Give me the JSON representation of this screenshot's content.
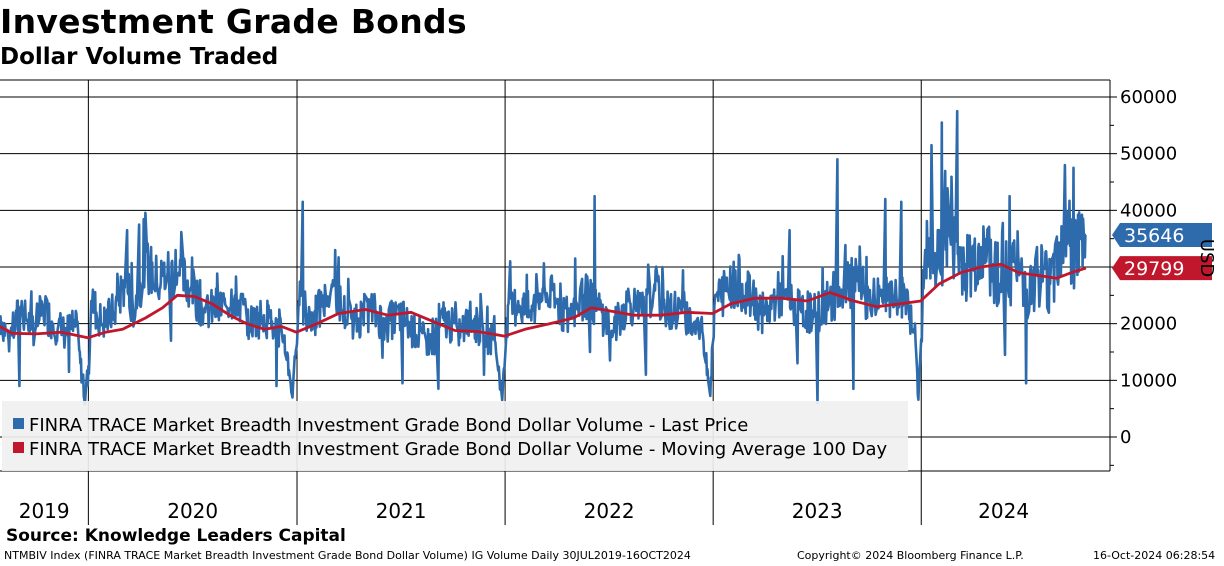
{
  "header": {
    "title": "Investment Grade Bonds",
    "subtitle": "Dollar Volume Traded"
  },
  "source": "Source: Knowledge Leaders Capital",
  "footer": {
    "left": "NTMBIV Index (FINRA TRACE Market Breadth Investment Grade Bond Dollar Volume) IG Volume  Daily 30JUL2019-16OCT2024",
    "middle": "Copyright© 2024 Bloomberg Finance L.P.",
    "right": "16-Oct-2024 06:28:54"
  },
  "colors": {
    "series_last": "#2e6bad",
    "series_ma": "#c0172c",
    "tag_last": "#2e6bad",
    "tag_ma": "#c0172c",
    "legend_bg": "#f0f0f0"
  },
  "chart_data": {
    "type": "line",
    "title": "Investment Grade Bonds",
    "subtitle": "Dollar Volume Traded",
    "ylabel": "USD",
    "ylim": [
      -6000,
      63000
    ],
    "yticks": [
      0,
      10000,
      20000,
      30000,
      40000,
      50000,
      60000
    ],
    "ytick_labels": [
      "0",
      "10000",
      "20000",
      "30000",
      "40000",
      "50000",
      "60000"
    ],
    "x_range": [
      "2019-07-30",
      "2024-10-16"
    ],
    "year_labels": [
      "2019",
      "2020",
      "2021",
      "2022",
      "2023",
      "2024"
    ],
    "year_boundaries": [
      "2020-01-01",
      "2021-01-01",
      "2022-01-01",
      "2023-01-01",
      "2024-01-01"
    ],
    "grid": true,
    "legend_placement": "bottom-left",
    "series": [
      {
        "name": "FINRA TRACE Market Breadth Investment Grade Bond Dollar Volume - Last Price",
        "last_value": 35646,
        "last_label": "35646",
        "points": [
          [
            "2019-07-30",
            21500
          ],
          [
            "2019-08-15",
            17000
          ],
          [
            "2019-09-05",
            23000
          ],
          [
            "2019-09-25",
            19000
          ],
          [
            "2019-10-15",
            22500
          ],
          [
            "2019-11-01",
            20000
          ],
          [
            "2019-11-20",
            18500
          ],
          [
            "2019-12-10",
            19500
          ],
          [
            "2019-12-26",
            6500
          ],
          [
            "2020-01-02",
            12500
          ],
          [
            "2020-01-06",
            24000
          ],
          [
            "2020-01-25",
            20000
          ],
          [
            "2020-02-15",
            22000
          ],
          [
            "2020-03-05",
            27500
          ],
          [
            "2020-03-20",
            23000
          ],
          [
            "2020-04-10",
            30500
          ],
          [
            "2020-05-01",
            27500
          ],
          [
            "2020-05-20",
            29000
          ],
          [
            "2020-06-10",
            28500
          ],
          [
            "2020-07-01",
            26000
          ],
          [
            "2020-07-25",
            22000
          ],
          [
            "2020-08-20",
            23000
          ],
          [
            "2020-09-15",
            25000
          ],
          [
            "2020-10-10",
            20000
          ],
          [
            "2020-11-05",
            21500
          ],
          [
            "2020-11-25",
            19000
          ],
          [
            "2020-12-10",
            17500
          ],
          [
            "2020-12-24",
            7500
          ],
          [
            "2021-01-05",
            24000
          ],
          [
            "2021-01-25",
            20500
          ],
          [
            "2021-02-15",
            23000
          ],
          [
            "2021-03-05",
            26500
          ],
          [
            "2021-03-25",
            22000
          ],
          [
            "2021-04-15",
            20500
          ],
          [
            "2021-05-10",
            22500
          ],
          [
            "2021-06-05",
            20000
          ],
          [
            "2021-07-01",
            21500
          ],
          [
            "2021-07-30",
            18000
          ],
          [
            "2021-08-25",
            16500
          ],
          [
            "2021-09-15",
            21000
          ],
          [
            "2021-10-10",
            18500
          ],
          [
            "2021-11-05",
            20500
          ],
          [
            "2021-11-25",
            18000
          ],
          [
            "2021-12-15",
            17000
          ],
          [
            "2021-12-27",
            6500
          ],
          [
            "2022-01-05",
            21000
          ],
          [
            "2022-01-25",
            24000
          ],
          [
            "2022-02-15",
            21500
          ],
          [
            "2022-03-10",
            26000
          ],
          [
            "2022-04-01",
            23500
          ],
          [
            "2022-04-25",
            21000
          ],
          [
            "2022-05-20",
            25000
          ],
          [
            "2022-06-15",
            22500
          ],
          [
            "2022-07-10",
            19000
          ],
          [
            "2022-08-05",
            24000
          ],
          [
            "2022-09-01",
            22000
          ],
          [
            "2022-09-20",
            26000
          ],
          [
            "2022-10-15",
            22000
          ],
          [
            "2022-11-05",
            23000
          ],
          [
            "2022-11-25",
            20000
          ],
          [
            "2022-12-15",
            18000
          ],
          [
            "2022-12-27",
            8000
          ],
          [
            "2023-01-05",
            24500
          ],
          [
            "2023-01-25",
            26000
          ],
          [
            "2023-02-15",
            27500
          ],
          [
            "2023-03-10",
            24000
          ],
          [
            "2023-04-01",
            21500
          ],
          [
            "2023-04-25",
            25000
          ],
          [
            "2023-05-15",
            23500
          ],
          [
            "2023-06-05",
            22000
          ],
          [
            "2023-07-01",
            22000
          ],
          [
            "2023-07-25",
            24000
          ],
          [
            "2023-08-15",
            26000
          ],
          [
            "2023-09-10",
            27500
          ],
          [
            "2023-10-01",
            24000
          ],
          [
            "2023-10-25",
            25500
          ],
          [
            "2023-11-15",
            23000
          ],
          [
            "2023-12-05",
            25000
          ],
          [
            "2023-12-20",
            19000
          ],
          [
            "2023-12-27",
            7500
          ],
          [
            "2024-01-08",
            33000
          ],
          [
            "2024-01-25",
            29000
          ],
          [
            "2024-02-15",
            37000
          ],
          [
            "2024-03-05",
            32000
          ],
          [
            "2024-03-25",
            30000
          ],
          [
            "2024-04-15",
            33500
          ],
          [
            "2024-05-05",
            30500
          ],
          [
            "2024-05-25",
            28000
          ],
          [
            "2024-06-15",
            31000
          ],
          [
            "2024-07-05",
            26000
          ],
          [
            "2024-07-25",
            29500
          ],
          [
            "2024-08-15",
            27000
          ],
          [
            "2024-09-05",
            37000
          ],
          [
            "2024-09-25",
            33000
          ],
          [
            "2024-10-16",
            35646
          ]
        ],
        "spikes": [
          [
            "2020-03-10",
            36500
          ],
          [
            "2020-03-30",
            37500
          ],
          [
            "2020-06-03",
            33000
          ],
          [
            "2021-01-12",
            41500
          ],
          [
            "2021-03-10",
            33000
          ],
          [
            "2022-01-10",
            31000
          ],
          [
            "2022-05-05",
            31500
          ],
          [
            "2022-06-08",
            42500
          ],
          [
            "2022-10-05",
            30000
          ],
          [
            "2023-05-15",
            36500
          ],
          [
            "2023-08-08",
            49000
          ],
          [
            "2023-10-30",
            42000
          ],
          [
            "2023-11-28",
            41500
          ],
          [
            "2024-01-20",
            51500
          ],
          [
            "2024-02-07",
            55500
          ],
          [
            "2024-03-05",
            57500
          ],
          [
            "2024-06-05",
            42500
          ],
          [
            "2024-09-10",
            48000
          ],
          [
            "2024-09-25",
            47500
          ]
        ],
        "dips": [
          [
            "2019-09-02",
            9000
          ],
          [
            "2019-11-29",
            11500
          ],
          [
            "2020-05-25",
            17000
          ],
          [
            "2020-11-27",
            9000
          ],
          [
            "2021-05-31",
            14000
          ],
          [
            "2021-07-05",
            9500
          ],
          [
            "2021-09-06",
            8500
          ],
          [
            "2021-11-26",
            11000
          ],
          [
            "2022-05-30",
            15000
          ],
          [
            "2022-07-04",
            13500
          ],
          [
            "2022-09-05",
            11000
          ],
          [
            "2023-05-29",
            13000
          ],
          [
            "2023-07-04",
            6000
          ],
          [
            "2023-09-04",
            8500
          ],
          [
            "2024-05-27",
            14500
          ],
          [
            "2024-07-04",
            9500
          ]
        ]
      },
      {
        "name": "FINRA TRACE Market Breadth Investment Grade Bond Dollar Volume - Moving Average 100 Day",
        "last_value": 29799,
        "last_label": "29799",
        "points": [
          [
            "2019-07-30",
            19500
          ],
          [
            "2019-08-20",
            18300
          ],
          [
            "2019-10-01",
            18200
          ],
          [
            "2019-11-15",
            18500
          ],
          [
            "2019-12-31",
            17500
          ],
          [
            "2020-01-31",
            18500
          ],
          [
            "2020-03-01",
            19000
          ],
          [
            "2020-04-10",
            21000
          ],
          [
            "2020-05-10",
            22800
          ],
          [
            "2020-06-05",
            25000
          ],
          [
            "2020-07-05",
            24800
          ],
          [
            "2020-08-05",
            23500
          ],
          [
            "2020-09-05",
            21500
          ],
          [
            "2020-10-05",
            20000
          ],
          [
            "2020-11-05",
            19000
          ],
          [
            "2020-12-05",
            19500
          ],
          [
            "2020-12-31",
            18500
          ],
          [
            "2021-02-05",
            20000
          ],
          [
            "2021-03-15",
            21800
          ],
          [
            "2021-05-01",
            22500
          ],
          [
            "2021-06-10",
            21500
          ],
          [
            "2021-07-20",
            22000
          ],
          [
            "2021-08-25",
            20500
          ],
          [
            "2021-10-05",
            18800
          ],
          [
            "2021-11-15",
            18600
          ],
          [
            "2021-12-31",
            17800
          ],
          [
            "2022-02-05",
            19000
          ],
          [
            "2022-03-20",
            20000
          ],
          [
            "2022-05-01",
            21000
          ],
          [
            "2022-06-01",
            22800
          ],
          [
            "2022-07-01",
            22300
          ],
          [
            "2022-08-15",
            21500
          ],
          [
            "2022-10-01",
            21500
          ],
          [
            "2022-11-15",
            22000
          ],
          [
            "2022-12-31",
            21800
          ],
          [
            "2023-02-01",
            23500
          ],
          [
            "2023-03-15",
            24500
          ],
          [
            "2023-05-01",
            24500
          ],
          [
            "2023-06-15",
            24000
          ],
          [
            "2023-07-25",
            25500
          ],
          [
            "2023-09-05",
            24000
          ],
          [
            "2023-10-15",
            23000
          ],
          [
            "2023-11-25",
            23500
          ],
          [
            "2023-12-31",
            24000
          ],
          [
            "2024-02-01",
            27000
          ],
          [
            "2024-03-10",
            29000
          ],
          [
            "2024-04-15",
            30000
          ],
          [
            "2024-05-20",
            30500
          ],
          [
            "2024-06-20",
            29000
          ],
          [
            "2024-07-25",
            28500
          ],
          [
            "2024-08-25",
            28000
          ],
          [
            "2024-09-20",
            29000
          ],
          [
            "2024-10-16",
            29799
          ]
        ]
      }
    ],
    "legend": [
      "FINRA TRACE Market Breadth Investment Grade Bond Dollar Volume - Last Price",
      "FINRA TRACE Market Breadth Investment Grade Bond Dollar Volume - Moving Average 100 Day"
    ]
  }
}
